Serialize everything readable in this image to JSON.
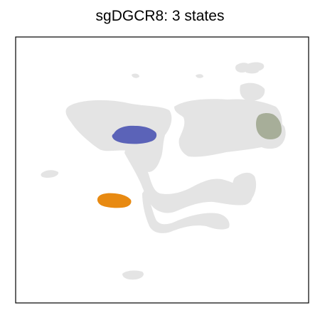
{
  "chart_data": {
    "type": "scatter",
    "title": "sgDGCR8: 3 states",
    "xlabel": "",
    "ylabel": "",
    "axes_ticks": false,
    "grid": false,
    "legend": "none",
    "background_color": "#e3e3e3",
    "series": [
      {
        "color": "#5b63b8"
      },
      {
        "color": "#a7ae99"
      },
      {
        "color": "#e88a12"
      }
    ]
  }
}
